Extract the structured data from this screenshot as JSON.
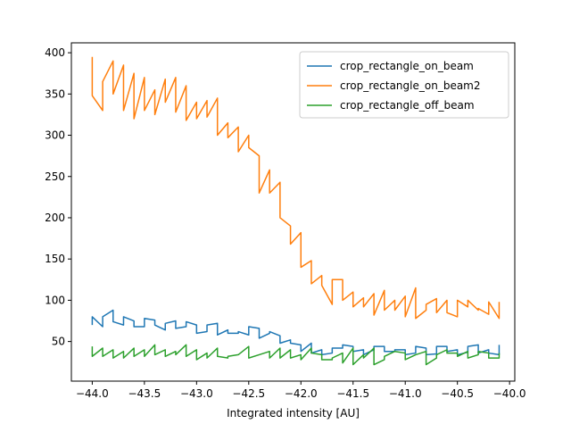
{
  "chart_data": {
    "type": "line",
    "title": "",
    "xlabel": "Integrated intensity [AU]",
    "ylabel": "",
    "xlim": [
      -44.2,
      -39.95
    ],
    "ylim": [
      2,
      412
    ],
    "xticks": [
      -44.0,
      -43.5,
      -43.0,
      -42.5,
      -42.0,
      -41.5,
      -41.0,
      -40.5,
      -40.0
    ],
    "xtick_labels": [
      "−44.0",
      "−43.5",
      "−43.0",
      "−42.5",
      "−42.0",
      "−41.5",
      "−41.0",
      "−40.5",
      "−40.0"
    ],
    "yticks": [
      50,
      100,
      150,
      200,
      250,
      300,
      350,
      400
    ],
    "ytick_labels": [
      "50",
      "100",
      "150",
      "200",
      "250",
      "300",
      "350",
      "400"
    ],
    "grid": false,
    "legend_position": "top-right",
    "x": [
      -44.0,
      -43.9,
      -43.8,
      -43.7,
      -43.6,
      -43.5,
      -43.4,
      -43.3,
      -43.2,
      -43.1,
      -43.0,
      -42.9,
      -42.8,
      -42.7,
      -42.6,
      -42.5,
      -42.4,
      -42.3,
      -42.2,
      -42.1,
      -42.0,
      -41.9,
      -41.8,
      -41.7,
      -41.6,
      -41.5,
      -41.4,
      -41.3,
      -41.2,
      -41.1,
      -41.0,
      -40.9,
      -40.8,
      -40.7,
      -40.6,
      -40.5,
      -40.4,
      -40.3,
      -40.2,
      -40.1
    ],
    "series": [
      {
        "name": "crop_rectangle_on_beam",
        "color": "#1f77b4",
        "y_start": [
          70,
          68,
          88,
          70,
          75,
          68,
          76,
          64,
          75,
          68,
          70,
          62,
          72,
          64,
          60,
          58,
          66,
          60,
          57,
          52,
          46,
          48,
          40,
          36,
          42,
          44,
          40,
          40,
          44,
          38,
          40,
          36,
          42,
          35,
          44,
          40,
          37,
          46,
          40,
          34
        ],
        "y_end": [
          80,
          80,
          74,
          80,
          68,
          78,
          70,
          72,
          66,
          74,
          60,
          70,
          58,
          60,
          62,
          68,
          54,
          62,
          48,
          48,
          38,
          36,
          34,
          42,
          46,
          38,
          34,
          44,
          38,
          40,
          34,
          44,
          34,
          44,
          38,
          34,
          44,
          36,
          36,
          46
        ]
      },
      {
        "name": "crop_rectangle_on_beam2",
        "color": "#ff7f0e",
        "y_start": [
          395,
          330,
          390,
          385,
          375,
          370,
          355,
          368,
          370,
          360,
          340,
          342,
          345,
          315,
          310,
          300,
          275,
          258,
          243,
          190,
          182,
          148,
          130,
          95,
          125,
          110,
          103,
          108,
          112,
          100,
          105,
          115,
          88,
          102,
          100,
          80,
          92,
          88,
          83,
          78
        ],
        "y_end": [
          348,
          365,
          350,
          330,
          320,
          330,
          325,
          340,
          328,
          318,
          320,
          322,
          300,
          297,
          280,
          285,
          230,
          230,
          200,
          168,
          140,
          120,
          118,
          125,
          100,
          92,
          92,
          82,
          88,
          88,
          80,
          78,
          95,
          85,
          85,
          100,
          100,
          90,
          98,
          98
        ]
      },
      {
        "name": "crop_rectangle_off_beam",
        "color": "#2ca02c",
        "y_start": [
          44,
          42,
          40,
          38,
          42,
          40,
          46,
          40,
          38,
          46,
          40,
          36,
          42,
          30,
          34,
          44,
          34,
          38,
          42,
          40,
          34,
          42,
          34,
          28,
          36,
          42,
          34,
          42,
          28,
          38,
          36,
          34,
          38,
          30,
          40,
          36,
          38,
          34,
          36,
          30
        ],
        "y_end": [
          32,
          32,
          30,
          30,
          32,
          32,
          34,
          32,
          34,
          32,
          28,
          30,
          32,
          32,
          34,
          30,
          34,
          30,
          30,
          30,
          28,
          36,
          28,
          30,
          24,
          22,
          30,
          22,
          32,
          38,
          28,
          34,
          22,
          34,
          36,
          32,
          30,
          38,
          30,
          36
        ]
      }
    ]
  }
}
